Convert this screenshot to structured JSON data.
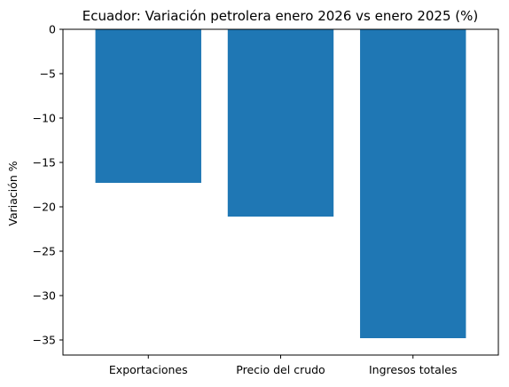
{
  "chart_data": {
    "type": "bar",
    "title": "Ecuador: Variación petrolera enero 2026 vs enero 2025 (%)",
    "xlabel": "",
    "ylabel": "Variación %",
    "categories": [
      "Exportaciones",
      "Precio del crudo",
      "Ingresos totales"
    ],
    "values": [
      -17.3,
      -21.1,
      -34.8
    ],
    "ylim": [
      -36.7,
      0
    ],
    "yticks": [
      0,
      -5,
      -10,
      -15,
      -20,
      -25,
      -30,
      -35
    ],
    "ytick_labels": [
      "0",
      "−5",
      "−10",
      "−15",
      "−20",
      "−25",
      "−30",
      "−35"
    ],
    "bar_color": "#1f77b4",
    "grid": false,
    "legend": "none"
  }
}
